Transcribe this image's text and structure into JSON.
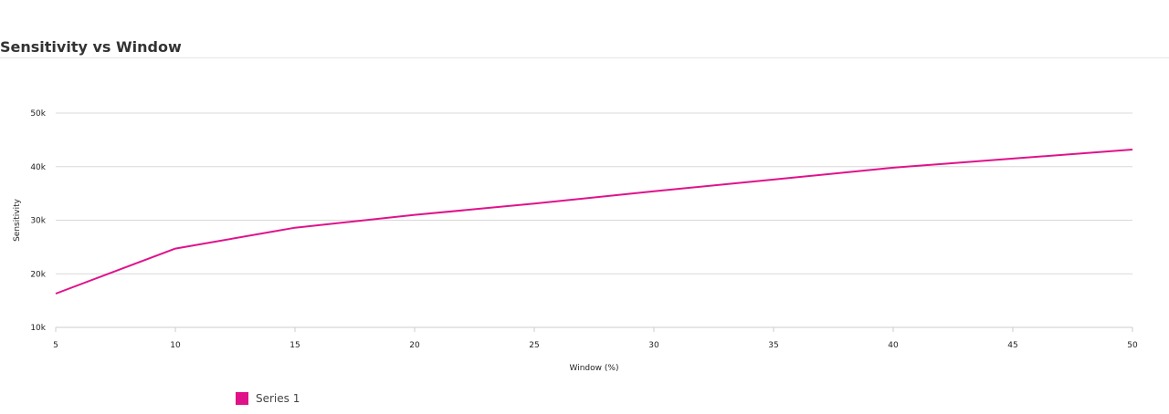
{
  "page": {
    "title": "Sensitivity vs Window"
  },
  "chart_data": {
    "type": "line",
    "title": "Sensitivity vs Window",
    "xlabel": "Window (%)",
    "ylabel": "Sensitivity",
    "x": [
      5,
      10,
      15,
      20,
      25,
      30,
      35,
      40,
      45,
      50
    ],
    "xlim": [
      5,
      50
    ],
    "ylim": [
      10000,
      50000
    ],
    "x_ticks": [
      "5",
      "10",
      "15",
      "20",
      "25",
      "30",
      "35",
      "40",
      "45",
      "50"
    ],
    "y_ticks": [
      10000,
      20000,
      30000,
      40000,
      50000
    ],
    "y_tick_labels": [
      "10k",
      "20k",
      "30k",
      "40k",
      "50k"
    ],
    "grid": true,
    "legend_position": "bottom-left",
    "series": [
      {
        "name": "Series 1",
        "color": "#e0128a",
        "values": [
          16300,
          24700,
          28600,
          31000,
          33100,
          35400,
          37600,
          39800,
          41500,
          43200
        ]
      }
    ]
  }
}
